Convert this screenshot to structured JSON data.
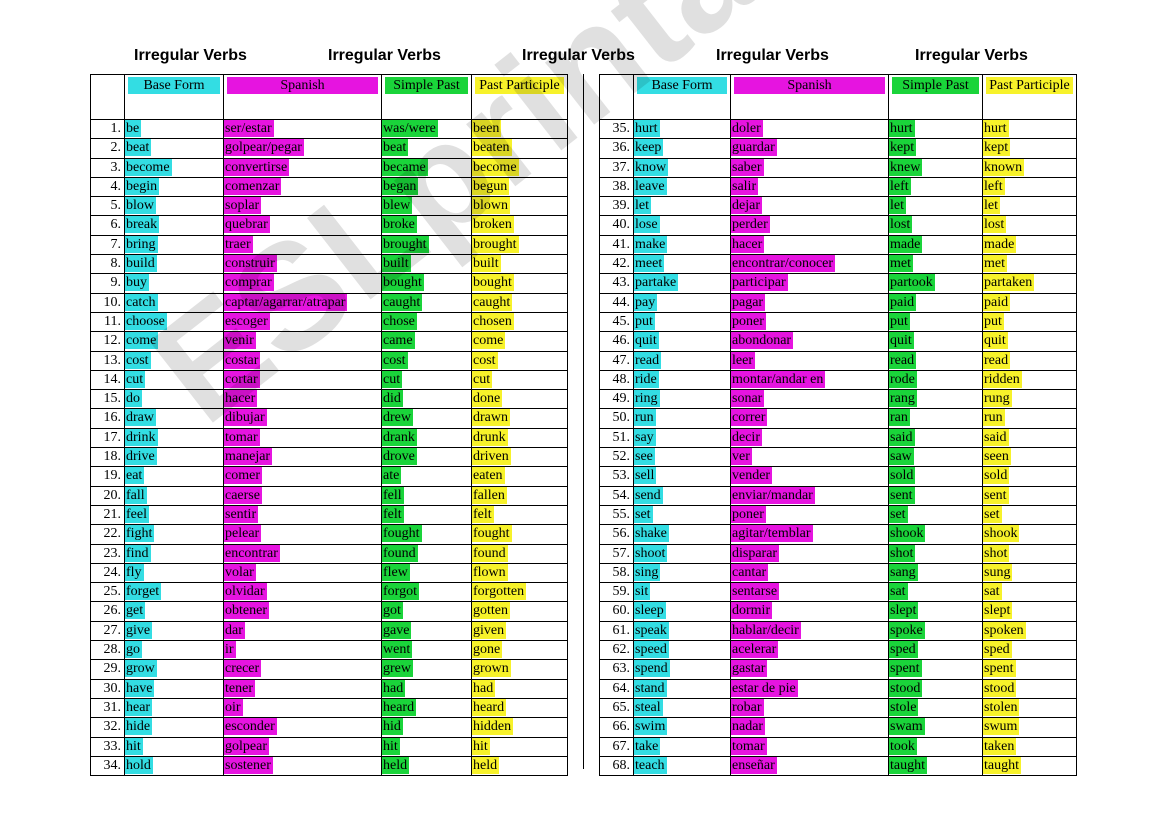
{
  "headers": [
    "Irregular Verbs",
    "Irregular Verbs",
    "Irregular Verbs",
    "Irregular Verbs",
    "Irregular Verbs"
  ],
  "columns": {
    "base": "Base Form",
    "spanish": "Spanish",
    "past": "Simple Past",
    "participle": "Past Participle"
  },
  "watermark": "ESLprintables.com",
  "left_rows": [
    [
      "1.",
      "be",
      "ser/estar",
      "was/were",
      "been"
    ],
    [
      "2.",
      "beat",
      "golpear/pegar",
      "beat",
      "beaten"
    ],
    [
      "3.",
      "become",
      "convertirse",
      "became",
      "become"
    ],
    [
      "4.",
      "begin",
      "comenzar",
      "began",
      "begun"
    ],
    [
      "5.",
      "blow",
      "soplar",
      "blew",
      "blown"
    ],
    [
      "6.",
      "break",
      "quebrar",
      "broke",
      "broken"
    ],
    [
      "7.",
      "bring",
      "traer",
      "brought",
      "brought"
    ],
    [
      "8.",
      "build",
      "construir",
      "built",
      "built"
    ],
    [
      "9.",
      "buy",
      "comprar",
      "bought",
      "bought"
    ],
    [
      "10.",
      "catch",
      "captar/agarrar/atrapar",
      "caught",
      "caught"
    ],
    [
      "11.",
      "choose",
      "escoger",
      "chose",
      "chosen"
    ],
    [
      "12.",
      "come",
      "venir",
      "came",
      "come"
    ],
    [
      "13.",
      "cost",
      "costar",
      "cost",
      "cost"
    ],
    [
      "14.",
      "cut",
      "cortar",
      "cut",
      "cut"
    ],
    [
      "15.",
      "do",
      "hacer",
      "did",
      "done"
    ],
    [
      "16.",
      "draw",
      "dibujar",
      "drew",
      "drawn"
    ],
    [
      "17.",
      "drink",
      "tomar",
      "drank",
      "drunk"
    ],
    [
      "18.",
      "drive",
      "manejar",
      "drove",
      "driven"
    ],
    [
      "19.",
      "eat",
      "comer",
      "ate",
      "eaten"
    ],
    [
      "20.",
      "fall",
      "caerse",
      "fell",
      "fallen"
    ],
    [
      "21.",
      "feel",
      "sentir",
      "felt",
      "felt"
    ],
    [
      "22.",
      "fight",
      "pelear",
      "fought",
      "fought"
    ],
    [
      "23.",
      "find",
      "encontrar",
      "found",
      "found"
    ],
    [
      "24.",
      "fly",
      "volar",
      "flew",
      "flown"
    ],
    [
      "25.",
      "forget",
      "olvidar",
      "forgot",
      "forgotten"
    ],
    [
      "26.",
      "get",
      "obtener",
      "got",
      "gotten"
    ],
    [
      "27.",
      "give",
      "dar",
      "gave",
      "given"
    ],
    [
      "28.",
      "go",
      "ir",
      "went",
      "gone"
    ],
    [
      "29.",
      "grow",
      "crecer",
      "grew",
      "grown"
    ],
    [
      "30.",
      "have",
      "tener",
      "had",
      "had"
    ],
    [
      "31.",
      "hear",
      "oir",
      "heard",
      "heard"
    ],
    [
      "32.",
      "hide",
      "esconder",
      "hid",
      "hidden"
    ],
    [
      "33.",
      "hit",
      "golpear",
      "hit",
      "hit"
    ],
    [
      "34.",
      "hold",
      "sostener",
      "held",
      "held"
    ]
  ],
  "right_rows": [
    [
      "35.",
      "hurt",
      "doler",
      "hurt",
      "hurt"
    ],
    [
      "36.",
      "keep",
      "guardar",
      "kept",
      "kept"
    ],
    [
      "37.",
      "know",
      "saber",
      "knew",
      "known"
    ],
    [
      "38.",
      "leave",
      "salir",
      "left",
      "left"
    ],
    [
      "39.",
      "let",
      "dejar",
      "let",
      "let"
    ],
    [
      "40.",
      "lose",
      "perder",
      "lost",
      "lost"
    ],
    [
      "41.",
      "make",
      "hacer",
      "made",
      "made"
    ],
    [
      "42.",
      "meet",
      "encontrar/conocer",
      "met",
      "met"
    ],
    [
      "43.",
      "partake",
      "participar",
      "partook",
      "partaken"
    ],
    [
      "44.",
      "pay",
      "pagar",
      "paid",
      "paid"
    ],
    [
      "45.",
      "put",
      "poner",
      "put",
      "put"
    ],
    [
      "46.",
      "quit",
      "abondonar",
      "quit",
      "quit"
    ],
    [
      "47.",
      "read",
      "leer",
      "read",
      "read"
    ],
    [
      "48.",
      "ride",
      "montar/andar en",
      "rode",
      "ridden"
    ],
    [
      "49.",
      "ring",
      "sonar",
      "rang",
      "rung"
    ],
    [
      "50.",
      "run",
      "correr",
      "ran",
      "run"
    ],
    [
      "51.",
      "say",
      "decir",
      "said",
      "said"
    ],
    [
      "52.",
      "see",
      "ver",
      "saw",
      "seen"
    ],
    [
      "53.",
      "sell",
      "vender",
      "sold",
      "sold"
    ],
    [
      "54.",
      "send",
      "enviar/mandar",
      "sent",
      "sent"
    ],
    [
      "55.",
      "set",
      "poner",
      "set",
      "set"
    ],
    [
      "56.",
      "shake",
      "agitar/temblar",
      "shook",
      "shook"
    ],
    [
      "57.",
      "shoot",
      "disparar",
      "shot",
      "shot"
    ],
    [
      "58.",
      "sing",
      "cantar",
      "sang",
      "sung"
    ],
    [
      "59.",
      "sit",
      "sentarse",
      "sat",
      "sat"
    ],
    [
      "60.",
      "sleep",
      "dormir",
      "slept",
      "slept"
    ],
    [
      "61.",
      "speak",
      "hablar/decir",
      "spoke",
      "spoken"
    ],
    [
      "62.",
      "speed",
      "acelerar",
      "sped",
      "sped"
    ],
    [
      "63.",
      "spend",
      "gastar",
      "spent",
      "spent"
    ],
    [
      "64.",
      "stand",
      "estar de pie",
      "stood",
      "stood"
    ],
    [
      "65.",
      "steal",
      "robar",
      "stole",
      "stolen"
    ],
    [
      "66.",
      "swim",
      "nadar",
      "swam",
      "swum"
    ],
    [
      "67.",
      "take",
      "tomar",
      "took",
      "taken"
    ],
    [
      "68.",
      "teach",
      "enseñar",
      "taught",
      "taught"
    ]
  ]
}
